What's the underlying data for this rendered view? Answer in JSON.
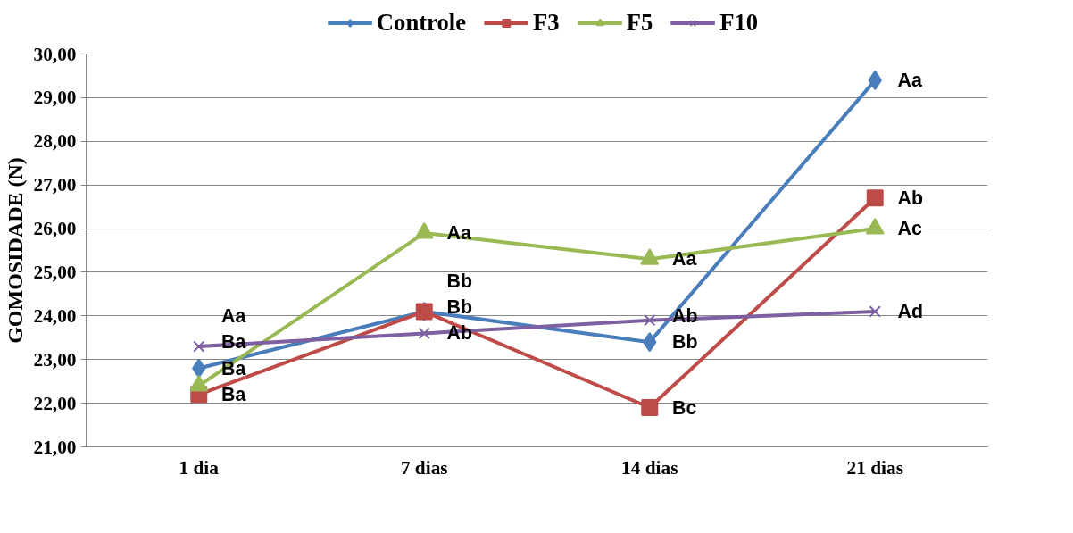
{
  "chart_data": {
    "type": "line",
    "ylabel": "GOMOSIDADE (N)",
    "categories": [
      "1 dia",
      "7 dias",
      "14 dias",
      "21 dias"
    ],
    "ylim": [
      21,
      30
    ],
    "yticks": [
      {
        "value": 21,
        "label": "21,00"
      },
      {
        "value": 22,
        "label": "22,00"
      },
      {
        "value": 23,
        "label": "23,00"
      },
      {
        "value": 24,
        "label": "24,00"
      },
      {
        "value": 25,
        "label": "25,00"
      },
      {
        "value": 26,
        "label": "26,00"
      },
      {
        "value": 27,
        "label": "27,00"
      },
      {
        "value": 28,
        "label": "28,00"
      },
      {
        "value": 29,
        "label": "29,00"
      },
      {
        "value": 30,
        "label": "30,00"
      }
    ],
    "grid": "y",
    "legend": "top",
    "series": [
      {
        "name": "Controle",
        "color": "#4a7ebb",
        "marker": "diamond",
        "values": [
          22.8,
          24.1,
          23.4,
          29.4
        ],
        "value_labels": [
          "Ba",
          "Bb",
          "Bb",
          "Aa"
        ]
      },
      {
        "name": "F3",
        "color": "#be4b48",
        "marker": "square",
        "values": [
          22.2,
          24.1,
          21.9,
          26.7
        ],
        "value_labels": [
          "Ba",
          "Bb",
          "Bc",
          "Ab"
        ]
      },
      {
        "name": "F5",
        "color": "#98b954",
        "marker": "triangle",
        "values": [
          22.4,
          25.9,
          25.3,
          26.0
        ],
        "value_labels": [
          "Ba",
          "Aa",
          "Aa",
          "Ac"
        ]
      },
      {
        "name": "F10",
        "color": "#7d60a0",
        "marker": "cross",
        "values": [
          23.3,
          23.6,
          23.9,
          24.1
        ],
        "value_labels": [
          "Aa",
          "Ab",
          "Ab",
          "Ad"
        ]
      }
    ]
  }
}
